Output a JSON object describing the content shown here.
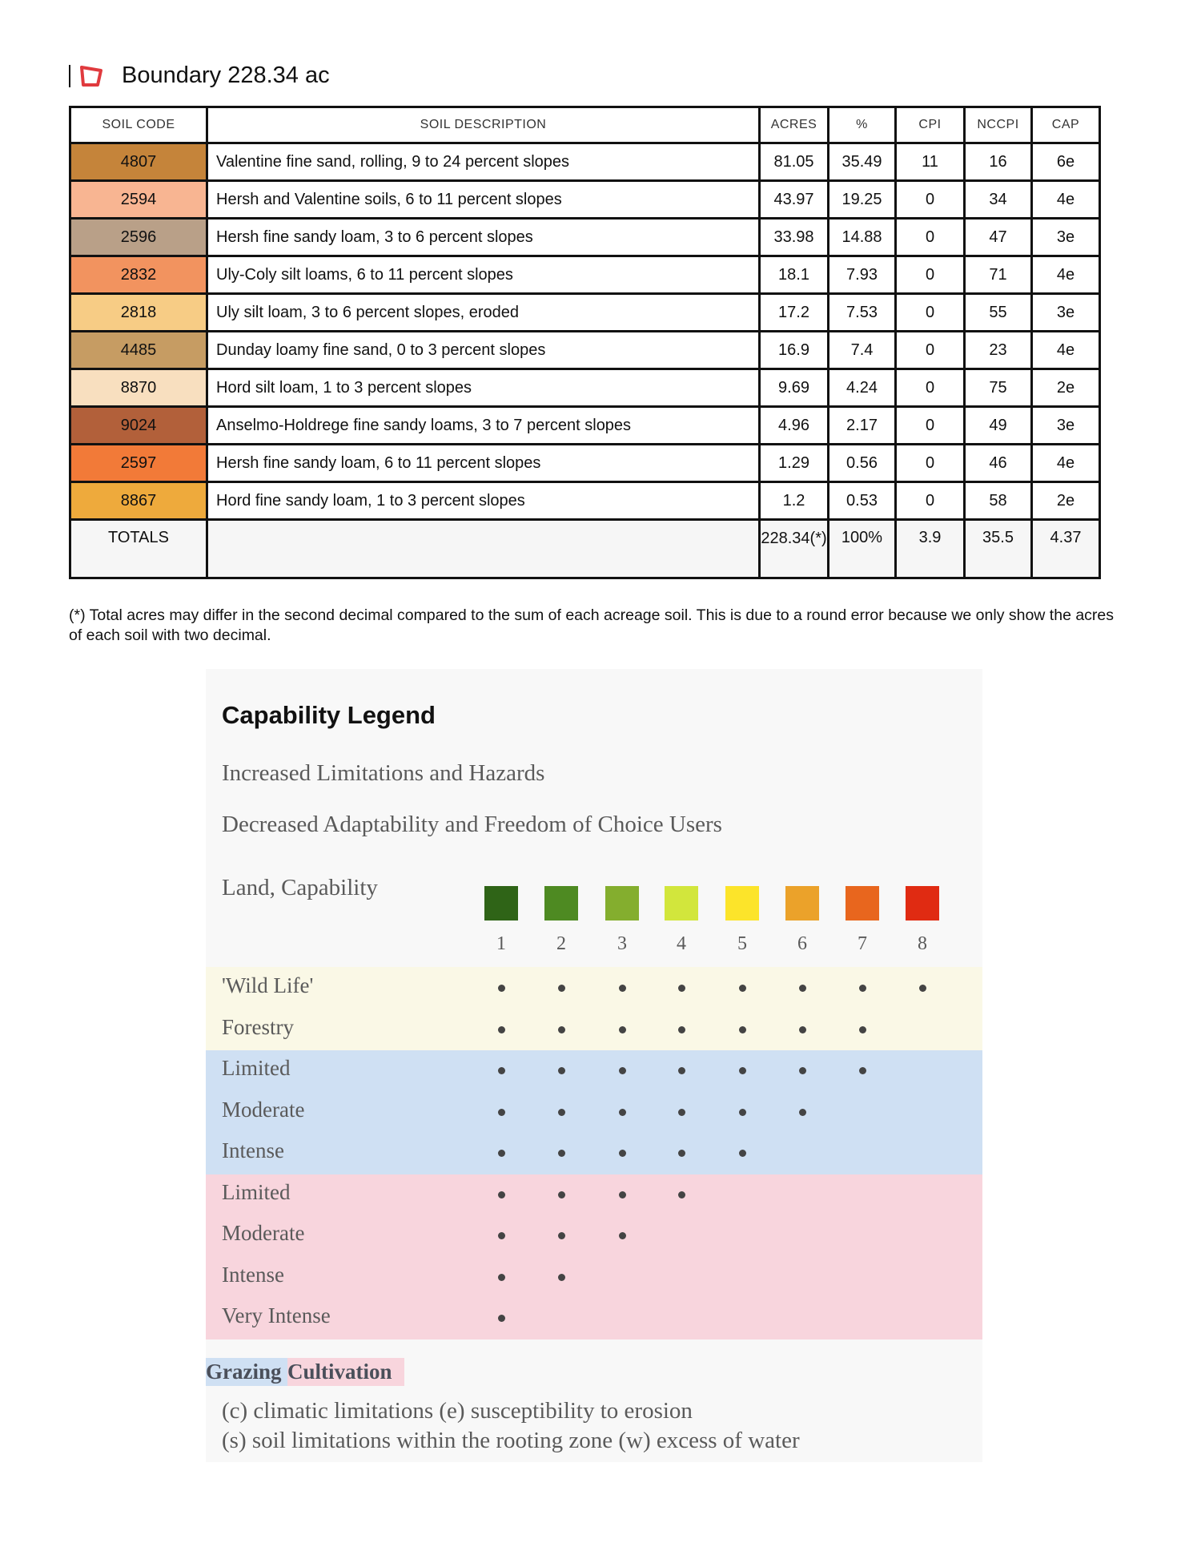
{
  "header": {
    "title": "Boundary 228.34 ac",
    "icon": "boundary-polygon-icon",
    "icon_color": "#e03a3e"
  },
  "table": {
    "columns": [
      "SOIL CODE",
      "SOIL DESCRIPTION",
      "ACRES",
      "%",
      "CPI",
      "NCCPI",
      "CAP"
    ],
    "rows": [
      {
        "code": "4807",
        "color": "#c5843a",
        "description": "Valentine fine sand, rolling, 9 to 24 percent slopes",
        "acres": "81.05",
        "pct": "35.49",
        "cpi": "11",
        "nccpi": "16",
        "cap": "6e"
      },
      {
        "code": "2594",
        "color": "#f8b592",
        "description": "Hersh and Valentine soils, 6 to 11 percent slopes",
        "acres": "43.97",
        "pct": "19.25",
        "cpi": "0",
        "nccpi": "34",
        "cap": "4e"
      },
      {
        "code": "2596",
        "color": "#b9a088",
        "description": "Hersh fine sandy loam, 3 to 6 percent slopes",
        "acres": "33.98",
        "pct": "14.88",
        "cpi": "0",
        "nccpi": "47",
        "cap": "3e"
      },
      {
        "code": "2832",
        "color": "#f2935f",
        "description": "Uly-Coly silt loams, 6 to 11 percent slopes",
        "acres": "18.1",
        "pct": "7.93",
        "cpi": "0",
        "nccpi": "71",
        "cap": "4e"
      },
      {
        "code": "2818",
        "color": "#f7cc85",
        "description": "Uly silt loam, 3 to 6 percent slopes, eroded",
        "acres": "17.2",
        "pct": "7.53",
        "cpi": "0",
        "nccpi": "55",
        "cap": "3e"
      },
      {
        "code": "4485",
        "color": "#c69c63",
        "description": "Dunday loamy fine sand, 0 to 3 percent slopes",
        "acres": "16.9",
        "pct": "7.4",
        "cpi": "0",
        "nccpi": "23",
        "cap": "4e"
      },
      {
        "code": "8870",
        "color": "#f8dfbf",
        "description": "Hord silt loam, 1 to 3 percent slopes",
        "acres": "9.69",
        "pct": "4.24",
        "cpi": "0",
        "nccpi": "75",
        "cap": "2e"
      },
      {
        "code": "9024",
        "color": "#b2603a",
        "description": "Anselmo-Holdrege fine sandy loams, 3 to 7 percent slopes",
        "acres": "4.96",
        "pct": "2.17",
        "cpi": "0",
        "nccpi": "49",
        "cap": "3e"
      },
      {
        "code": "2597",
        "color": "#f27a38",
        "description": "Hersh fine sandy loam, 6 to 11 percent slopes",
        "acres": "1.29",
        "pct": "0.56",
        "cpi": "0",
        "nccpi": "46",
        "cap": "4e"
      },
      {
        "code": "8867",
        "color": "#eeaa3c",
        "description": "Hord fine sandy loam, 1 to 3 percent slopes",
        "acres": "1.2",
        "pct": "0.53",
        "cpi": "0",
        "nccpi": "58",
        "cap": "2e"
      }
    ],
    "totals": {
      "label": "TOTALS",
      "acres": "228.34(*)",
      "pct": "100%",
      "cpi": "3.9",
      "nccpi": "35.5",
      "cap": "4.37"
    }
  },
  "footnote": "(*) Total acres may differ in the second decimal compared to the sum of each acreage soil. This is due to a round error because we only show the acres of each soil with two decimal.",
  "legend": {
    "title": "Capability Legend",
    "line1": "Increased Limitations and Hazards",
    "line2": "Decreased Adaptability and Freedom of Choice Users",
    "land_label": "Land, Capability",
    "classes": [
      {
        "num": "1",
        "color": "#2f6417"
      },
      {
        "num": "2",
        "color": "#4e8a22"
      },
      {
        "num": "3",
        "color": "#84ae2e"
      },
      {
        "num": "4",
        "color": "#d2e63c"
      },
      {
        "num": "5",
        "color": "#fce42a"
      },
      {
        "num": "6",
        "color": "#eba22a"
      },
      {
        "num": "7",
        "color": "#e8661e"
      },
      {
        "num": "8",
        "color": "#e02b12"
      }
    ],
    "rows": [
      {
        "label": "'Wild Life'",
        "count": 8,
        "band": "#faf8e6"
      },
      {
        "label": "Forestry",
        "count": 7,
        "band": "#faf8e6"
      },
      {
        "label": "Limited",
        "count": 7,
        "band": "#cfe0f3"
      },
      {
        "label": "Moderate",
        "count": 6,
        "band": "#cfe0f3"
      },
      {
        "label": "Intense",
        "count": 5,
        "band": "#cfe0f3"
      },
      {
        "label": "Limited",
        "count": 4,
        "band": "#f8d5dd"
      },
      {
        "label": "Moderate",
        "count": 3,
        "band": "#f8d5dd"
      },
      {
        "label": "Intense",
        "count": 2,
        "band": "#f8d5dd"
      },
      {
        "label": "Very Intense",
        "count": 1,
        "band": "#f8d5dd"
      }
    ],
    "grazing": {
      "label": "Grazing",
      "color": "#cfe0f3"
    },
    "cultivation": {
      "label": "Cultivation",
      "color": "#f8d5dd"
    },
    "note1": "(c) climatic limitations (e) susceptibility to erosion",
    "note2": "(s) soil limitations within the rooting zone (w) excess of water"
  }
}
